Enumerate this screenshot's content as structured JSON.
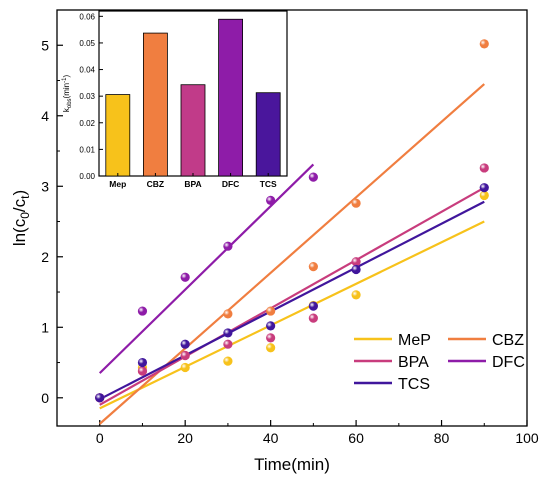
{
  "chart_data": [
    {
      "type": "scatter",
      "xlabel": "Time(min)",
      "ylabel_main": "ln(c",
      "ylabel_sub0": "0",
      "ylabel_mid": "/c",
      "ylabel_sub1": "t",
      "ylabel_end": ")",
      "xlim": [
        -10,
        100
      ],
      "ylim": [
        -0.4,
        5.5
      ],
      "xticks": [
        0,
        20,
        40,
        60,
        80,
        100
      ],
      "yticks": [
        0,
        1,
        2,
        3,
        4,
        5
      ],
      "grid": false,
      "legend_position": "bottom-right",
      "series": [
        {
          "name": "MeP",
          "color": "#F7C21B",
          "x": [
            0,
            10,
            20,
            30,
            40,
            50,
            60,
            90
          ],
          "y": [
            0.0,
            0.43,
            0.43,
            0.52,
            0.71,
            1.31,
            1.46,
            2.87
          ],
          "fit": [
            [
              0,
              -0.15
            ],
            [
              90,
              2.5
            ]
          ]
        },
        {
          "name": "CBZ",
          "color": "#F07E40",
          "x": [
            0,
            10,
            20,
            30,
            40,
            50,
            60,
            90
          ],
          "y": [
            0.0,
            0.38,
            0.6,
            1.19,
            1.23,
            1.86,
            2.76,
            5.02
          ],
          "fit": [
            [
              0,
              -0.37
            ],
            [
              90,
              4.45
            ]
          ]
        },
        {
          "name": "BPA",
          "color": "#C83C7D",
          "x": [
            0,
            10,
            20,
            30,
            40,
            50,
            60,
            90
          ],
          "y": [
            0.0,
            0.38,
            0.6,
            0.76,
            0.85,
            1.13,
            1.93,
            3.26
          ],
          "fit": [
            [
              0,
              -0.1
            ],
            [
              90,
              2.98
            ]
          ]
        },
        {
          "name": "DFC",
          "color": "#8E1CA8",
          "x": [
            0,
            10,
            20,
            30,
            40,
            50
          ],
          "y": [
            0.0,
            1.23,
            1.71,
            2.15,
            2.8,
            3.13
          ],
          "fit": [
            [
              0,
              0.35
            ],
            [
              50,
              3.31
            ]
          ]
        },
        {
          "name": "TCS",
          "color": "#40169C",
          "x": [
            0,
            10,
            20,
            30,
            40,
            50,
            60,
            90
          ],
          "y": [
            0.0,
            0.5,
            0.76,
            0.92,
            1.02,
            1.3,
            1.82,
            2.98
          ],
          "fit": [
            [
              0,
              -0.02
            ],
            [
              90,
              2.78
            ]
          ]
        }
      ]
    },
    {
      "type": "bar",
      "ylabel_main": "k",
      "ylabel_sub": "obs",
      "ylabel_end": "(min",
      "ylabel_sup": "-1",
      "ylabel_close": ")",
      "categories": [
        "Mep",
        "CBZ",
        "BPA",
        "DFC",
        "TCS"
      ],
      "values": [
        0.0306,
        0.0537,
        0.0343,
        0.0589,
        0.0313
      ],
      "colors": [
        "#F7C21B",
        "#F07E40",
        "#C13B89",
        "#8E1CA8",
        "#4A169C"
      ],
      "ylim": [
        0,
        0.062
      ],
      "yticks": [
        "0.00",
        "0.01",
        "0.02",
        "0.03",
        "0.04",
        "0.05",
        "0.06"
      ],
      "ytick_values": [
        0,
        0.01,
        0.02,
        0.03,
        0.04,
        0.05,
        0.06
      ]
    }
  ]
}
